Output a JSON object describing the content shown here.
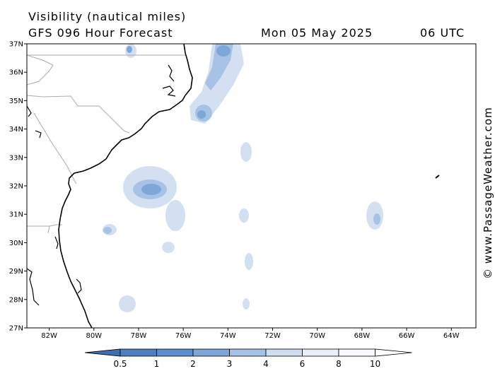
{
  "header": {
    "title": "Visibility (nautical miles)",
    "model_run": "GFS 096 Hour Forecast",
    "date": "Mon 05 May 2025",
    "time": "06 UTC"
  },
  "map": {
    "lat_ticks": [
      "37N",
      "36N",
      "35N",
      "34N",
      "33N",
      "32N",
      "31N",
      "30N",
      "29N",
      "28N",
      "27N"
    ],
    "lon_ticks": [
      "82W",
      "80W",
      "78W",
      "76W",
      "74W",
      "72W",
      "70W",
      "68W",
      "66W",
      "64W"
    ],
    "lat_range": [
      27,
      37
    ],
    "lon_range": [
      -83,
      -62.9
    ],
    "land_color": "#ffffff",
    "border_color": "#aaaaaa",
    "coast_color": "#000000"
  },
  "legend": {
    "labels": [
      "0.5",
      "1",
      "2",
      "3",
      "4",
      "6",
      "8",
      "10"
    ],
    "colors": [
      "#4f7fbf",
      "#5b8fcc",
      "#7ea6d8",
      "#a6c2e5",
      "#cfddf1",
      "#e8eff8",
      "#f7f9fc",
      "#ffffff"
    ]
  },
  "credit": "© www.PassageWeather.com"
}
